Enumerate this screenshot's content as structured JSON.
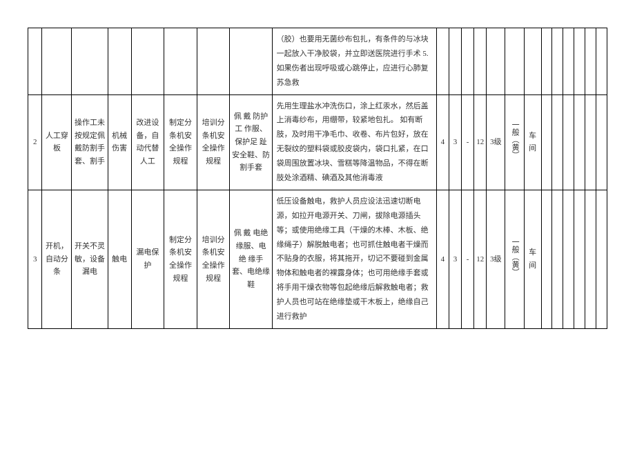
{
  "rows": [
    {
      "idx": "",
      "activity": "",
      "cause": "",
      "hazard": "",
      "eng": "",
      "mgmt": "",
      "train": "",
      "ppe": "",
      "emergency": "（胶）也要用无菌纱布包扎，有条件的与冰块一起放入干净胶袋，并立即送医院进行手术 5.如果伤者出现呼吸或心跳停止，应进行心肺复苏急救",
      "c1": "",
      "c2": "",
      "c3": "",
      "c4": "",
      "lvl": "",
      "grade": "",
      "unit": "",
      "t1": "",
      "t2": "",
      "t3": "",
      "t4": "",
      "t5": "",
      "t6": ""
    },
    {
      "idx": "2",
      "activity": "人工穿板",
      "cause": "操作工未按规定佩戴防割手套、割手",
      "hazard": "机械伤害",
      "eng": "改进设备，自动代替人工",
      "mgmt": "制定分条机安全操作规程",
      "train": "培训分条机安全操作规程",
      "ppe": "佩 戴 防护 工 作服、保护足 趾 安全鞋、防割手套",
      "emergency": "先用生理盐水冲洗伤口，涂上红汞水，然后盖上消毒纱布，用绷带，较紧地包扎。\n如有断肢，及时用干净毛巾、收卷、布片包好，放在无裂纹的塑料袋或胶皮袋内，袋口扎紧，在口袋周围放置冰块、雪糕等降温物品，不得在断肢处涂酒精、碘酒及其他消毒液",
      "c1": "4",
      "c2": "3",
      "c3": "-",
      "c4": "12",
      "lvl": "3级",
      "grade": "一般（黄）",
      "unit": "车间",
      "t1": "",
      "t2": "",
      "t3": "",
      "t4": "",
      "t5": "",
      "t6": ""
    },
    {
      "idx": "3",
      "activity": "开机，自动分条",
      "cause": "开关不灵敏，设备漏电",
      "hazard": "触电",
      "eng": "漏电保护",
      "mgmt": "制定分条机安全操作规程",
      "train": "培训分条机安全操作规程",
      "ppe": "佩 戴 电绝缘服、电 绝 缘手套、电绝缘鞋",
      "emergency": "低压设备触电，救护人员应设法迅速切断电源，如拉开电源开关、刀闸，拔除电源插头等；或使用绝缘工具（干燥的木棒、木板、绝缘绳子）解脱触电者；也可抓住触电者干燥而不贴身的衣服，将其拖开，切记不要碰到金属物体和触电者的裸露身体；也可用绝缘手套或将手用干燥衣物等包起绝缘后解救触电者；救护人员也可站在绝缘垫或干木板上，绝缘自己进行救护",
      "c1": "4",
      "c2": "3",
      "c3": "-",
      "c4": "12",
      "lvl": "3级",
      "grade": "一般（黄）",
      "unit": "车间",
      "t1": "",
      "t2": "",
      "t3": "",
      "t4": "",
      "t5": "",
      "t6": ""
    }
  ]
}
